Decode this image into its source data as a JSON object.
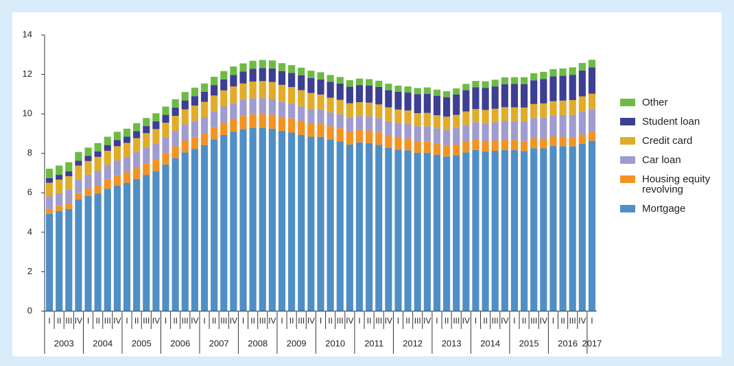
{
  "chart_data": {
    "type": "stacked_bar",
    "categories": [
      "I",
      "II",
      "III",
      "IV",
      "I",
      "II",
      "III",
      "IV",
      "I",
      "II",
      "III",
      "IV",
      "I",
      "II",
      "III",
      "IV",
      "I",
      "II",
      "III",
      "IV",
      "I",
      "II",
      "III",
      "IV",
      "I",
      "II",
      "III",
      "IV",
      "I",
      "II",
      "III",
      "IV",
      "I",
      "II",
      "III",
      "IV",
      "I",
      "II",
      "III",
      "IV",
      "I",
      "II",
      "III",
      "IV",
      "I",
      "II",
      "III",
      "IV",
      "I",
      "II",
      "III",
      "IV",
      "I",
      "II",
      "III",
      "IV",
      "I"
    ],
    "years": [
      "2003",
      "2004",
      "2005",
      "2006",
      "2007",
      "2008",
      "2009",
      "2010",
      "2011",
      "2012",
      "2013",
      "2014",
      "2015",
      "2016",
      "2017"
    ],
    "ylim": [
      0,
      14
    ],
    "yticks": [
      0,
      2,
      4,
      6,
      8,
      10,
      12,
      14
    ],
    "series": [
      {
        "name": "Mortgage",
        "color": "#4f8fc6",
        "values": [
          4.94,
          5.08,
          5.18,
          5.66,
          5.84,
          5.97,
          6.21,
          6.36,
          6.51,
          6.7,
          6.91,
          7.1,
          7.44,
          7.76,
          8.05,
          8.23,
          8.42,
          8.71,
          8.93,
          9.1,
          9.23,
          9.29,
          9.29,
          9.25,
          9.14,
          9.06,
          8.94,
          8.84,
          8.83,
          8.7,
          8.61,
          8.45,
          8.55,
          8.52,
          8.43,
          8.28,
          8.19,
          8.15,
          8.03,
          8.03,
          7.93,
          7.84,
          7.9,
          8.05,
          8.17,
          8.1,
          8.13,
          8.17,
          8.17,
          8.12,
          8.26,
          8.25,
          8.37,
          8.36,
          8.35,
          8.48,
          8.63
        ]
      },
      {
        "name": "Housing equity revolving",
        "color": "#f39323",
        "values": [
          0.24,
          0.26,
          0.29,
          0.32,
          0.36,
          0.42,
          0.47,
          0.51,
          0.53,
          0.56,
          0.57,
          0.57,
          0.58,
          0.59,
          0.6,
          0.6,
          0.61,
          0.61,
          0.62,
          0.63,
          0.66,
          0.69,
          0.7,
          0.71,
          0.71,
          0.71,
          0.7,
          0.69,
          0.68,
          0.67,
          0.66,
          0.65,
          0.63,
          0.64,
          0.63,
          0.61,
          0.6,
          0.59,
          0.57,
          0.56,
          0.55,
          0.54,
          0.54,
          0.53,
          0.53,
          0.53,
          0.52,
          0.51,
          0.51,
          0.5,
          0.5,
          0.49,
          0.49,
          0.48,
          0.47,
          0.47,
          0.46
        ]
      },
      {
        "name": "Car loan",
        "color": "#a09ccf",
        "values": [
          0.64,
          0.64,
          0.68,
          0.7,
          0.72,
          0.73,
          0.75,
          0.77,
          0.78,
          0.8,
          0.82,
          0.82,
          0.79,
          0.8,
          0.82,
          0.82,
          0.8,
          0.81,
          0.82,
          0.82,
          0.81,
          0.81,
          0.81,
          0.79,
          0.77,
          0.75,
          0.74,
          0.72,
          0.71,
          0.71,
          0.71,
          0.71,
          0.71,
          0.72,
          0.73,
          0.74,
          0.75,
          0.76,
          0.77,
          0.78,
          0.79,
          0.81,
          0.84,
          0.86,
          0.88,
          0.9,
          0.93,
          0.96,
          0.97,
          1.0,
          1.03,
          1.06,
          1.07,
          1.1,
          1.13,
          1.16,
          1.17
        ]
      },
      {
        "name": "Credit card",
        "color": "#e1ac2a",
        "values": [
          0.69,
          0.69,
          0.69,
          0.7,
          0.69,
          0.7,
          0.7,
          0.72,
          0.71,
          0.71,
          0.72,
          0.74,
          0.74,
          0.75,
          0.76,
          0.77,
          0.78,
          0.8,
          0.82,
          0.84,
          0.84,
          0.85,
          0.86,
          0.87,
          0.85,
          0.84,
          0.82,
          0.81,
          0.76,
          0.74,
          0.73,
          0.73,
          0.7,
          0.69,
          0.69,
          0.7,
          0.68,
          0.67,
          0.67,
          0.68,
          0.66,
          0.67,
          0.67,
          0.68,
          0.66,
          0.67,
          0.68,
          0.7,
          0.68,
          0.7,
          0.71,
          0.73,
          0.71,
          0.73,
          0.75,
          0.78,
          0.76
        ]
      },
      {
        "name": "Student loan",
        "color": "#3c3f92",
        "values": [
          0.24,
          0.24,
          0.25,
          0.25,
          0.26,
          0.28,
          0.29,
          0.31,
          0.32,
          0.35,
          0.36,
          0.39,
          0.4,
          0.42,
          0.45,
          0.48,
          0.51,
          0.53,
          0.56,
          0.58,
          0.61,
          0.64,
          0.66,
          0.68,
          0.7,
          0.72,
          0.76,
          0.76,
          0.77,
          0.81,
          0.83,
          0.84,
          0.87,
          0.87,
          0.88,
          0.87,
          0.9,
          0.91,
          0.96,
          0.97,
          0.99,
          0.99,
          1.03,
          1.08,
          1.11,
          1.12,
          1.13,
          1.16,
          1.19,
          1.19,
          1.2,
          1.23,
          1.26,
          1.26,
          1.28,
          1.31,
          1.34
        ]
      },
      {
        "name": "Other",
        "color": "#6dbb45",
        "values": [
          0.47,
          0.47,
          0.46,
          0.44,
          0.42,
          0.42,
          0.42,
          0.42,
          0.4,
          0.41,
          0.41,
          0.41,
          0.42,
          0.42,
          0.43,
          0.43,
          0.42,
          0.42,
          0.42,
          0.43,
          0.41,
          0.41,
          0.41,
          0.41,
          0.4,
          0.39,
          0.38,
          0.37,
          0.36,
          0.34,
          0.33,
          0.33,
          0.33,
          0.32,
          0.32,
          0.33,
          0.31,
          0.31,
          0.31,
          0.32,
          0.31,
          0.3,
          0.31,
          0.32,
          0.32,
          0.33,
          0.34,
          0.35,
          0.34,
          0.35,
          0.36,
          0.37,
          0.37,
          0.37,
          0.38,
          0.38,
          0.38
        ]
      }
    ]
  }
}
